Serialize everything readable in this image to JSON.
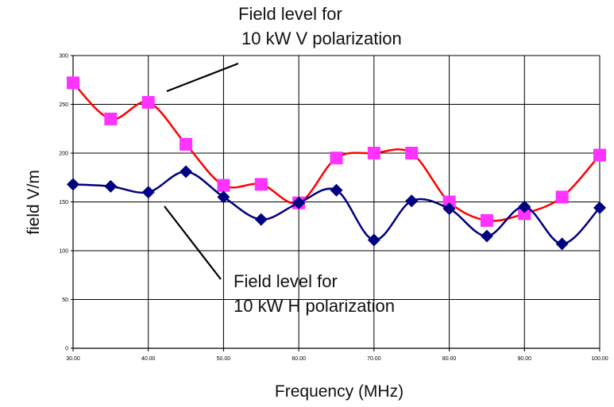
{
  "chart_data": {
    "type": "line",
    "title": "",
    "xlabel": "Frequency (MHz)",
    "ylabel": "field V/m",
    "xlim": [
      30,
      100
    ],
    "ylim": [
      0,
      300
    ],
    "x_ticks": [
      "30.00",
      "40.00",
      "50.00",
      "60.00",
      "70.00",
      "80.00",
      "90.00",
      "100.00"
    ],
    "y_ticks": [
      "0",
      "50",
      "100",
      "150",
      "200",
      "250",
      "300"
    ],
    "grid": true,
    "legend": "none",
    "x": [
      30,
      35,
      40,
      45,
      50,
      55,
      60,
      65,
      70,
      75,
      80,
      85,
      90,
      95,
      100
    ],
    "series": [
      {
        "color": "#ff0000",
        "marker": "square",
        "marker_color": "#ff33ff",
        "values": [
          272,
          235,
          252,
          209,
          167,
          168,
          149,
          195,
          200,
          200,
          150,
          131,
          138,
          155,
          198
        ]
      },
      {
        "color": "#000080",
        "marker": "diamond",
        "marker_color": "#000080",
        "values": [
          168,
          166,
          160,
          181,
          155,
          132,
          149,
          162,
          111,
          151,
          143,
          115,
          145,
          107,
          144
        ]
      }
    ],
    "annotations": [
      {
        "lines": [
          "Field level for",
          "10 kW V polarization"
        ],
        "target": "series-0"
      },
      {
        "lines": [
          "Field level for",
          "10 kW H polarization"
        ],
        "target": "series-1"
      }
    ]
  }
}
